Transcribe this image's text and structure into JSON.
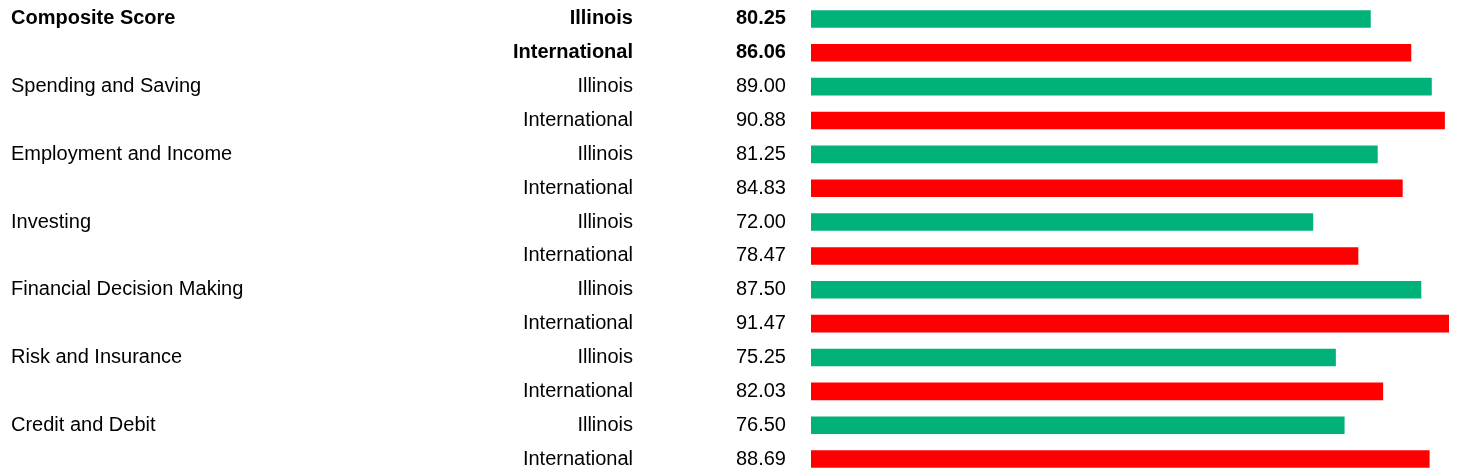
{
  "chart_data": {
    "type": "bar",
    "orientation": "horizontal",
    "categories": [
      "Illinois",
      "International",
      "Illinois",
      "International",
      "Illinois",
      "International",
      "Illinois",
      "International",
      "Illinois",
      "International",
      "Illinois",
      "International",
      "Illinois",
      "International"
    ],
    "values": [
      80.25,
      86.06,
      89.0,
      90.88,
      81.25,
      84.83,
      72.0,
      78.47,
      87.5,
      91.47,
      75.25,
      82.03,
      76.5,
      88.69
    ],
    "value_labels": [
      "80.25",
      "86.06",
      "89.00",
      "90.88",
      "81.25",
      "84.83",
      "72.00",
      "78.47",
      "87.50",
      "91.47",
      "75.25",
      "82.03",
      "76.50",
      "88.69"
    ],
    "colors": [
      "#00b27a",
      "#ff0000",
      "#00b27a",
      "#ff0000",
      "#00b27a",
      "#ff0000",
      "#00b27a",
      "#ff0000",
      "#00b27a",
      "#ff0000",
      "#00b27a",
      "#ff0000",
      "#00b27a",
      "#ff0000"
    ],
    "annotations": [
      "Composite Score",
      "Spending and Saving",
      "Employment and Income",
      "Investing",
      "Financial Decision Making",
      "Risk and Insurance",
      "Credit and Debit"
    ],
    "legend": false
  }
}
